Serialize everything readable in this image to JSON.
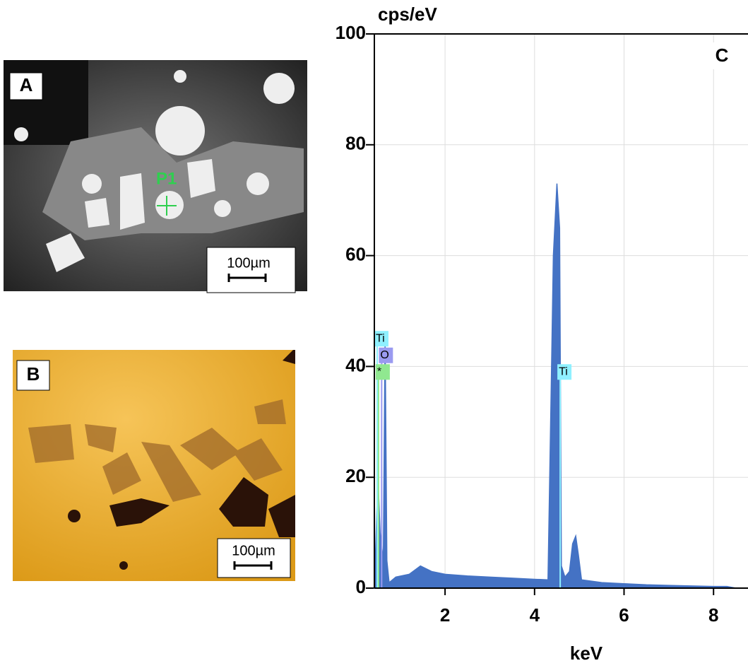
{
  "panels": {
    "a": {
      "label": "A",
      "scale": "100µm",
      "point": "P1"
    },
    "b": {
      "label": "B",
      "scale": "100µm"
    }
  },
  "chart_data": {
    "type": "area",
    "panel_label": "C",
    "y_label": "cps/eV",
    "x_label": "keV",
    "color": "#4472c4",
    "x": [
      0.42,
      0.5,
      0.55,
      0.62,
      0.66,
      0.7,
      0.75,
      0.9,
      1.2,
      1.45,
      1.7,
      2.0,
      2.5,
      3.0,
      3.5,
      4.0,
      4.3,
      4.38,
      4.42,
      4.5,
      4.56,
      4.6,
      4.68,
      4.78,
      4.85,
      4.92,
      4.98,
      5.05,
      5.5,
      6.0,
      6.5,
      7.0,
      7.5,
      8.0,
      8.3,
      8.5
    ],
    "values": [
      0,
      20,
      10,
      5,
      46,
      5,
      1,
      2,
      2.5,
      4,
      3,
      2.5,
      2.2,
      2,
      1.8,
      1.6,
      1.5,
      40,
      60,
      73,
      65,
      4,
      2,
      3,
      8,
      9.4,
      6,
      1.5,
      1,
      0.8,
      0.6,
      0.5,
      0.4,
      0.3,
      0.3,
      0
    ],
    "xlim": [
      0.42,
      8.77
    ],
    "ylim": [
      0,
      100
    ],
    "xticks": [
      2,
      4,
      6,
      8
    ],
    "yticks": [
      0,
      20,
      40,
      60,
      80,
      100
    ],
    "grid": true,
    "annotations": [
      {
        "text": "Ti",
        "x": 0.42,
        "y": 45,
        "color": "#8ff0ff"
      },
      {
        "text": "O",
        "x": 0.52,
        "y": 42,
        "color": "#9a9af0"
      },
      {
        "text": "*",
        "x": 0.45,
        "y": 39,
        "color": "#90e890"
      },
      {
        "text": "Ti",
        "x": 4.51,
        "y": 39,
        "color": "#8ff0ff"
      }
    ]
  }
}
